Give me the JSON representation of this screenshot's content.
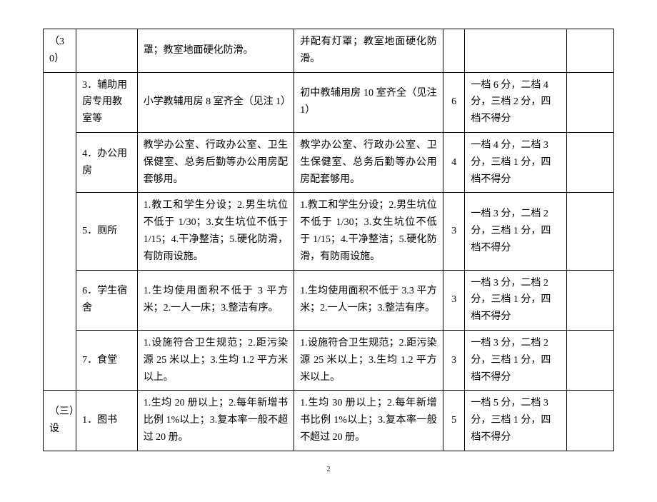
{
  "table": {
    "rows": [
      {
        "c1": "（30）",
        "c2": "",
        "c3": "罩；教室地面硬化防滑。",
        "c4": "并配有灯罩；教室地面硬化防滑。",
        "c5": "",
        "c6": "",
        "c7": ""
      },
      {
        "c1": "",
        "c2": "3．辅助用房专用教室等",
        "c3": "小学教辅用房 8 室齐全（见注 1）",
        "c4": "初中教辅用房 10 室齐全（见注 1）",
        "c5": "6",
        "c6": "一档 6 分，二档 4 分，三档 2 分，四档不得分",
        "c7": ""
      },
      {
        "c1": "",
        "c2": "4．办公用房",
        "c3": "教学办公室、行政办公室、卫生保健室、总务后勤等办公用房配套够用。",
        "c4": "教学办公室、行政办公室、卫生保健室、总务后勤等办公用房配套够用。",
        "c5": "4",
        "c6": "一档 4 分，二档 3 分，三档 1 分，四档不得分",
        "c7": ""
      },
      {
        "c1": "",
        "c2": "5．厕所",
        "c3": "1.教工和学生分设；2.男生坑位不低于 1/30；3.女生坑位不低于 1/15；4.干净整洁；5.硬化防滑，有防雨设施。",
        "c4": "1.教工和学生分设；2.男生坑位不低于 1/30；3.女生坑位不低于 1/15；4.干净整洁；5.硬化防滑，有防雨设施。",
        "c5": "3",
        "c6": "一档 3 分，二档 2 分，三档 1 分，四档不得分",
        "c7": ""
      },
      {
        "c1": "",
        "c2": "6．学生宿舍",
        "c3": "1.生均使用面积不低于 3 平方米；2.一人一床；3.整洁有序。",
        "c4": "1.生均使用面积不低于 3.3 平方米；2.一人一床；3.整洁有序。",
        "c5": "3",
        "c6": "一档 3 分，二档 2 分，三档 1 分，四档不得分",
        "c7": ""
      },
      {
        "c1": "",
        "c2": "7．食堂",
        "c3": "1.设施符合卫生规范；2.距污染源 25 米以上；3.生均 1.2 平方米以上。",
        "c4": "1.设施符合卫生规范；2.距污染源 25 米以上；3.生均 1.2 平方米以上。",
        "c5": "3",
        "c6": "一档 3 分，二档 2 分，三档 1 分，四档不得分",
        "c7": ""
      },
      {
        "c1": "（三）设",
        "c2": "1．图书",
        "c3": "1.生均 20 册以上；2.每年新增书比例 1%以上；3.复本率一般不超过 20 册。",
        "c4": "1.生均 30 册以上；2.每年新增书比例 1%以上；3.复本率一般不超过 20 册。",
        "c5": "5",
        "c6": "一档 5 分，二档 3 分，三档 1 分，四档不得分",
        "c7": ""
      }
    ]
  },
  "page_number": "2",
  "style": {
    "background_color": "#ffffff",
    "border_color": "#000000",
    "font_family": "SimSun",
    "base_fontsize": 14,
    "line_height": 1.7
  }
}
